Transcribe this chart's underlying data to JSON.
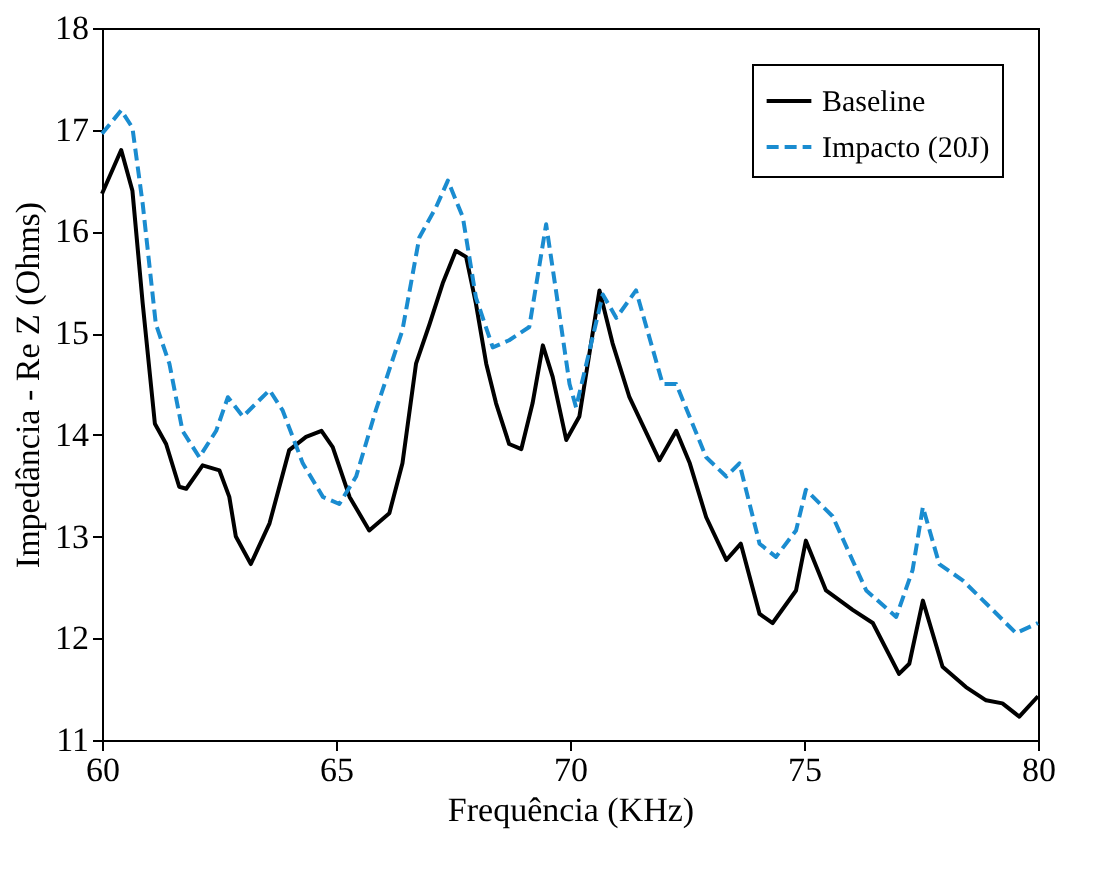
{
  "chart_data": {
    "type": "line",
    "xlabel": "Frequência (KHz)",
    "ylabel": "Impedância - Re Z (Ohms)",
    "xlim": [
      60,
      80
    ],
    "xticks": [
      60,
      65,
      70,
      75,
      80
    ],
    "ylim": [
      11,
      18
    ],
    "yticks": [
      11,
      12,
      13,
      14,
      15,
      16,
      17,
      18
    ],
    "grid": false,
    "legend": "top right",
    "marker": "none",
    "series": [
      {
        "name": "Baseline",
        "color": "#000000",
        "line_style": "solid",
        "x": [
          60.0,
          60.41,
          60.65,
          60.87,
          61.13,
          61.37,
          61.65,
          61.8,
          62.15,
          62.51,
          62.72,
          62.86,
          63.18,
          63.58,
          64.0,
          64.36,
          64.69,
          64.93,
          65.29,
          65.71,
          66.14,
          66.42,
          66.71,
          67.0,
          67.28,
          67.56,
          67.78,
          67.99,
          68.21,
          68.42,
          68.7,
          68.96,
          69.2,
          69.42,
          69.63,
          69.92,
          70.2,
          70.63,
          70.91,
          71.27,
          71.91,
          72.27,
          72.56,
          72.91,
          73.34,
          73.65,
          74.05,
          74.33,
          74.83,
          75.04,
          75.47,
          76.04,
          76.47,
          77.03,
          77.25,
          77.54,
          77.96,
          78.46,
          78.89,
          79.24,
          79.6,
          80.0
        ],
        "values": [
          16.37,
          16.8,
          16.4,
          15.29,
          14.11,
          13.91,
          13.49,
          13.47,
          13.7,
          13.65,
          13.39,
          13.0,
          12.73,
          13.13,
          13.85,
          13.98,
          14.04,
          13.88,
          13.39,
          13.06,
          13.23,
          13.72,
          14.7,
          15.09,
          15.49,
          15.81,
          15.75,
          15.29,
          14.7,
          14.31,
          13.91,
          13.86,
          14.31,
          14.88,
          14.57,
          13.95,
          14.18,
          15.42,
          14.9,
          14.37,
          13.75,
          14.04,
          13.72,
          13.19,
          12.77,
          12.93,
          12.24,
          12.15,
          12.47,
          12.96,
          12.47,
          12.28,
          12.15,
          11.65,
          11.75,
          12.37,
          11.72,
          11.52,
          11.39,
          11.36,
          11.23,
          11.43
        ]
      },
      {
        "name": "Impacto (20J)",
        "color": "#1a8cd0",
        "line_style": "dashed",
        "x": [
          60.0,
          60.41,
          60.65,
          60.87,
          61.15,
          61.44,
          61.72,
          62.08,
          62.44,
          62.69,
          63.01,
          63.58,
          63.86,
          64.29,
          64.72,
          65.07,
          65.43,
          65.85,
          66.42,
          66.78,
          67.14,
          67.39,
          67.71,
          67.99,
          68.35,
          68.7,
          69.13,
          69.49,
          69.7,
          69.99,
          70.13,
          70.7,
          70.99,
          71.41,
          71.98,
          72.27,
          72.91,
          73.34,
          73.62,
          74.05,
          74.4,
          74.83,
          75.04,
          75.61,
          76.33,
          76.97,
          77.32,
          77.54,
          77.89,
          78.39,
          79.03,
          79.53,
          80.0
        ],
        "values": [
          16.96,
          17.19,
          17.02,
          16.27,
          15.09,
          14.7,
          14.04,
          13.78,
          14.04,
          14.37,
          14.18,
          14.44,
          14.24,
          13.72,
          13.39,
          13.32,
          13.59,
          14.24,
          15.03,
          15.94,
          16.24,
          16.5,
          16.14,
          15.35,
          14.86,
          14.93,
          15.06,
          16.07,
          15.42,
          14.5,
          14.27,
          15.38,
          15.15,
          15.42,
          14.5,
          14.5,
          13.78,
          13.59,
          13.72,
          12.93,
          12.8,
          13.06,
          13.46,
          13.2,
          12.47,
          12.21,
          12.67,
          13.29,
          12.73,
          12.57,
          12.28,
          12.05,
          12.15
        ]
      }
    ]
  }
}
